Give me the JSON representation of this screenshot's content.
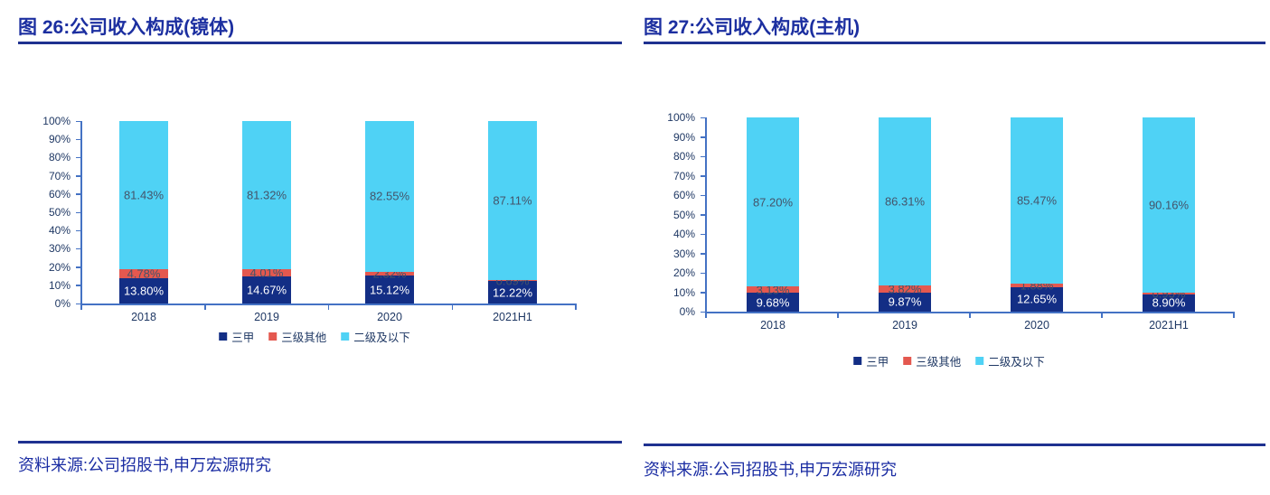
{
  "colors": {
    "title_blue": "#1C2FA0",
    "rule_navy": "#1F3190",
    "axis_line": "#4472C4",
    "axis_text": "#1F3864",
    "label_dark": "#44546A",
    "label_light": "#FFFFFF"
  },
  "panels": [
    {
      "title": "图 26:公司收入构成(镜体)",
      "source": "资料来源:公司招股书,申万宏源研究"
    },
    {
      "title": "图 27:公司收入构成(主机)",
      "source": "资料来源:公司招股书,申万宏源研究"
    }
  ],
  "chart_data": [
    {
      "type": "bar",
      "stacked": true,
      "title": "公司收入构成(镜体)",
      "categories": [
        "2018",
        "2019",
        "2020",
        "2021H1"
      ],
      "series": [
        {
          "name": "三甲",
          "color": "#132E85",
          "label_color": "#FFFFFF",
          "values": [
            13.8,
            14.67,
            15.12,
            12.22
          ]
        },
        {
          "name": "三级其他",
          "color": "#E4584F",
          "label_color": "#44546A",
          "values": [
            4.78,
            4.01,
            2.32,
            0.69
          ]
        },
        {
          "name": "二级及以下",
          "color": "#4FD2F5",
          "label_color": "#44546A",
          "values": [
            81.43,
            81.32,
            82.55,
            87.11
          ]
        }
      ],
      "ylim": [
        0,
        100
      ],
      "ytick_step": 10,
      "ytick_suffix": "%",
      "grid": false,
      "legend_position": "bottom"
    },
    {
      "type": "bar",
      "stacked": true,
      "title": "公司收入构成(主机)",
      "categories": [
        "2018",
        "2019",
        "2020",
        "2021H1"
      ],
      "series": [
        {
          "name": "三甲",
          "color": "#132E85",
          "label_color": "#FFFFFF",
          "values": [
            9.68,
            9.87,
            12.65,
            8.9
          ]
        },
        {
          "name": "三级其他",
          "color": "#E4584F",
          "label_color": "#44546A",
          "values": [
            3.13,
            3.82,
            1.88,
            0.93
          ]
        },
        {
          "name": "二级及以下",
          "color": "#4FD2F5",
          "label_color": "#44546A",
          "values": [
            87.2,
            86.31,
            85.47,
            90.16
          ]
        }
      ],
      "ylim": [
        0,
        100
      ],
      "ytick_step": 10,
      "ytick_suffix": "%",
      "grid": false,
      "legend_position": "bottom"
    }
  ]
}
